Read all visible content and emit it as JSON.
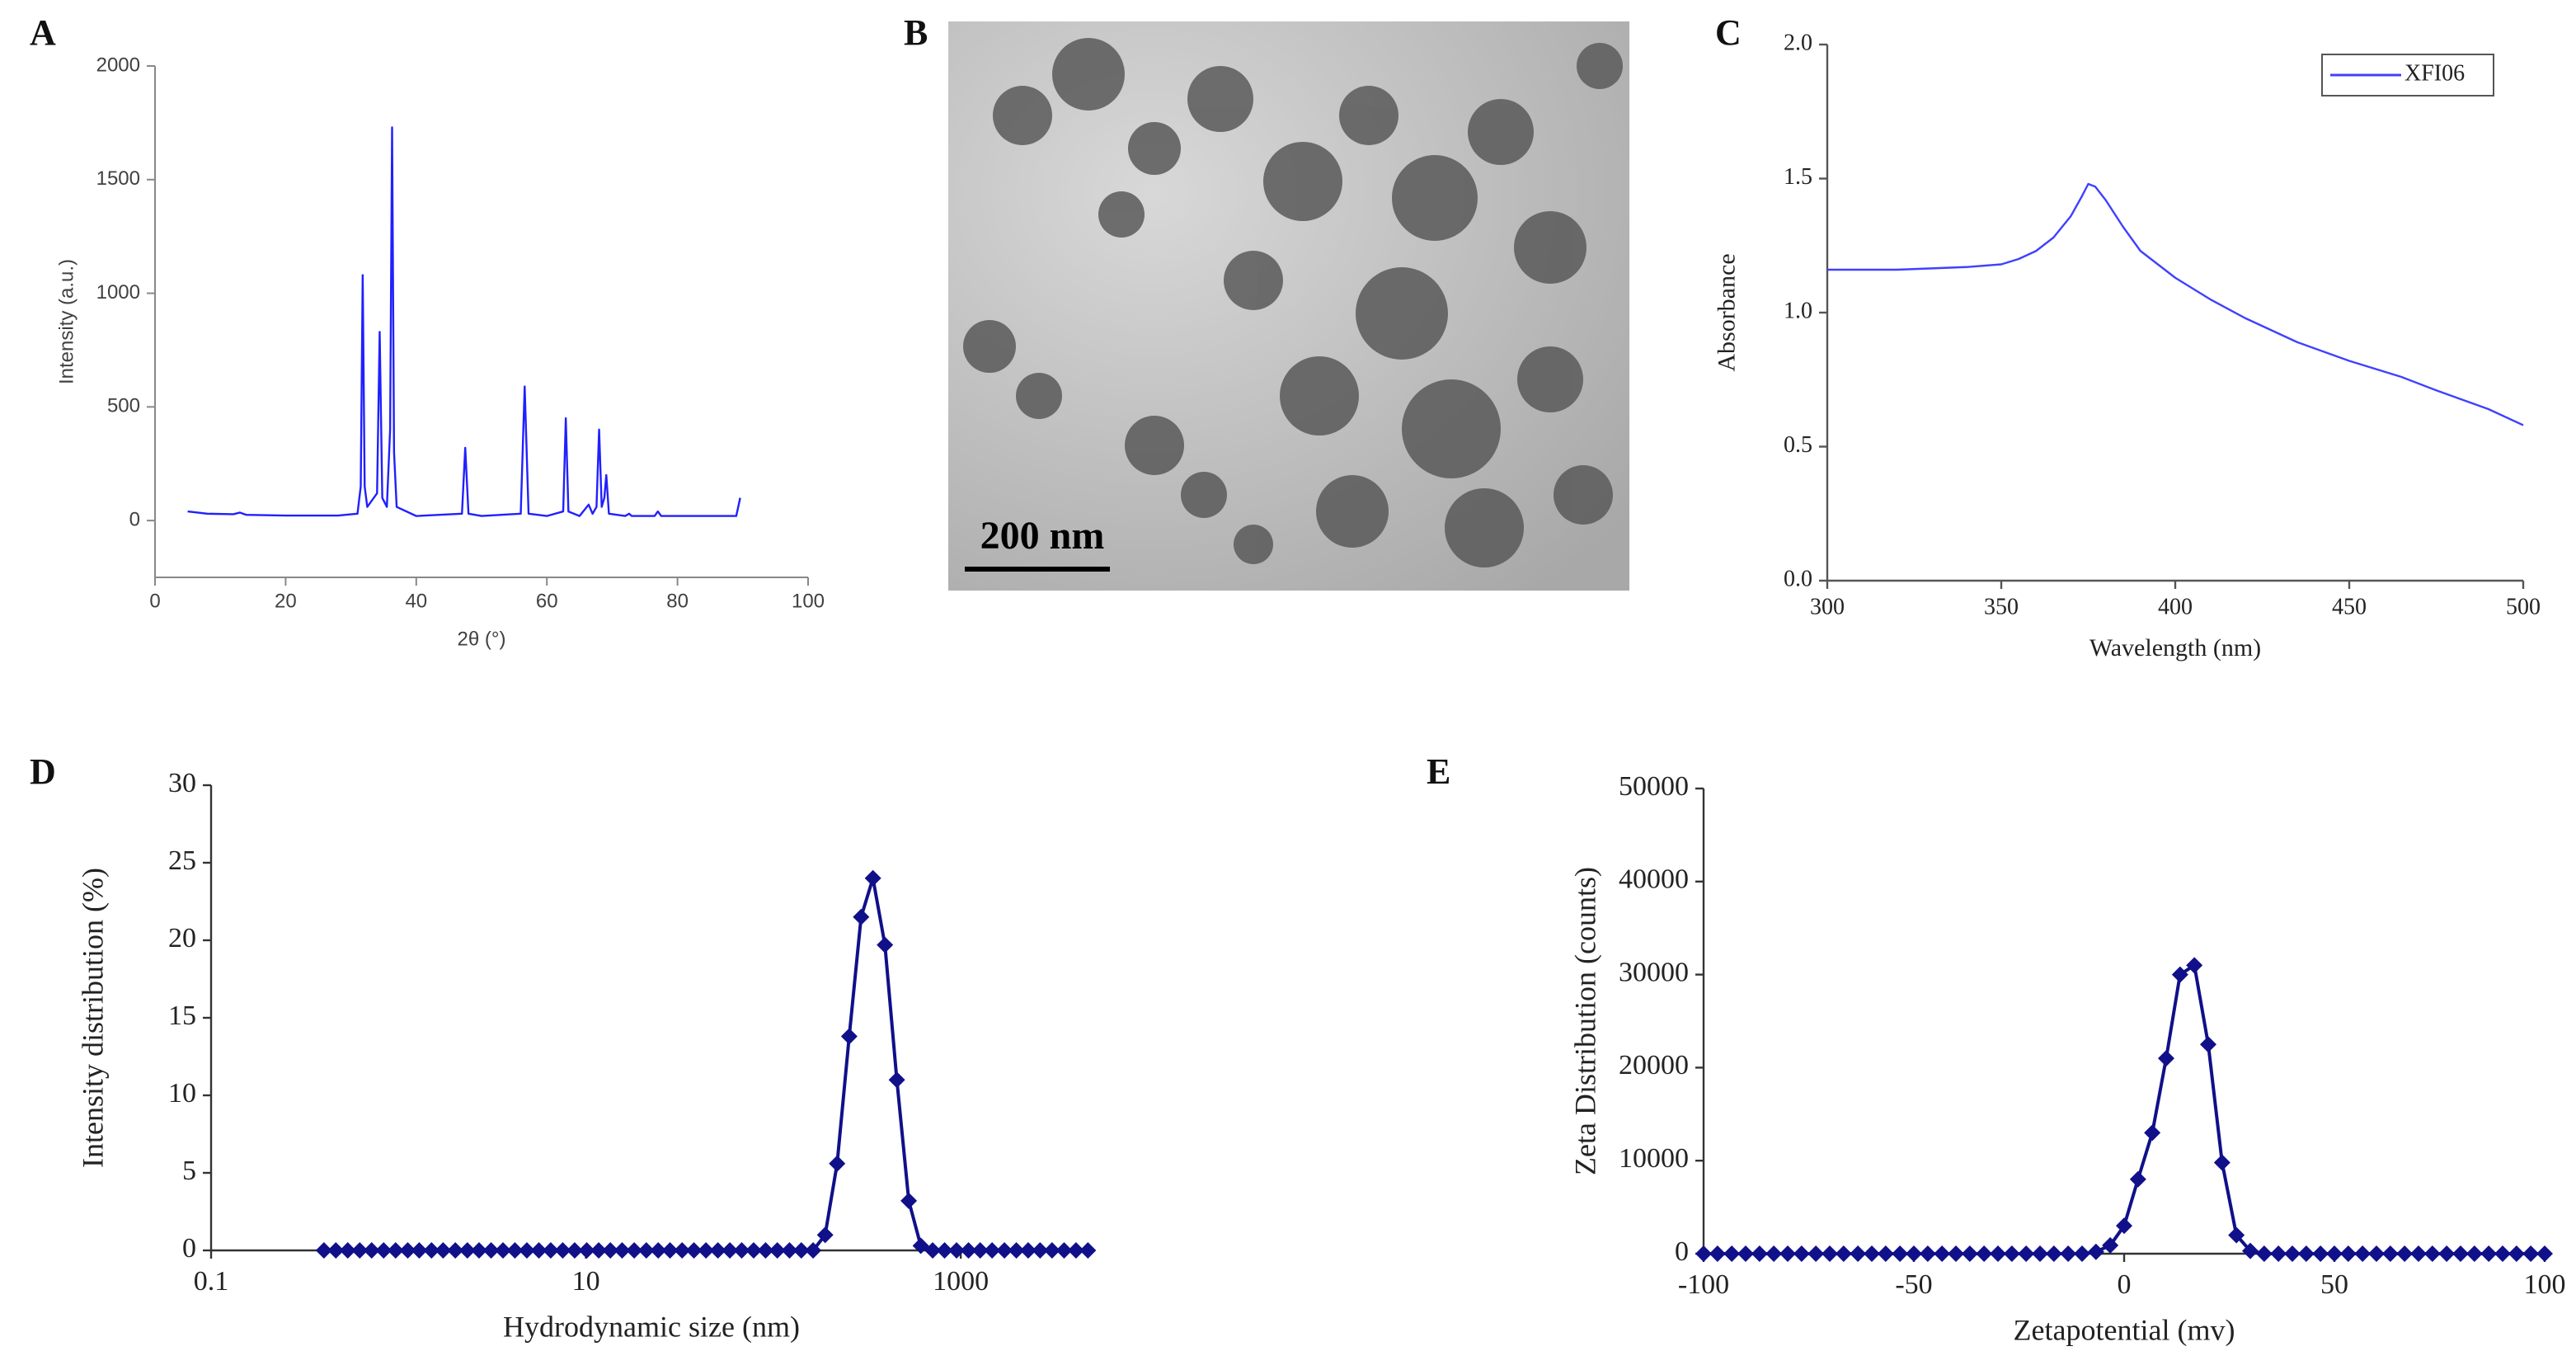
{
  "chart_data": [
    {
      "type": "line",
      "panel": "A",
      "x_label": "2θ (°)",
      "y_label": "Intensity (a.u.)",
      "x": [
        5,
        8,
        12,
        13,
        14,
        20,
        28,
        31,
        31.5,
        31.8,
        32.1,
        32.5,
        34,
        34.4,
        34.8,
        35.5,
        36,
        36.3,
        36.6,
        37,
        40,
        47,
        47.5,
        48,
        50,
        56,
        56.6,
        57.2,
        60,
        62.5,
        62.9,
        63.3,
        65,
        66.4,
        67,
        67.6,
        68,
        68.4,
        68.8,
        69.1,
        69.5,
        72,
        72.6,
        73,
        76.5,
        77,
        77.5,
        81,
        81.4,
        82,
        89,
        89.3,
        89.6
      ],
      "series": [
        {
          "color": "#2020ff",
          "values": [
            40,
            30,
            28,
            35,
            25,
            22,
            22,
            30,
            150,
            1080,
            150,
            60,
            120,
            830,
            100,
            60,
            400,
            1730,
            300,
            60,
            20,
            30,
            320,
            30,
            20,
            30,
            590,
            30,
            20,
            40,
            450,
            40,
            20,
            70,
            30,
            60,
            400,
            60,
            100,
            200,
            30,
            20,
            30,
            20,
            20,
            40,
            20,
            20,
            20,
            20,
            20,
            60,
            100
          ]
        }
      ],
      "xlim": [
        0,
        100
      ],
      "xticks": [
        0,
        20,
        40,
        60,
        80,
        100
      ],
      "ylim": [
        -250,
        2000
      ],
      "yticks": [
        0,
        500,
        1000,
        1500,
        2000
      ]
    },
    {
      "type": "line",
      "panel": "C",
      "x_label": "Wavelength (nm)",
      "y_label": "Absorbance",
      "x": [
        300,
        320,
        340,
        350,
        355,
        360,
        365,
        370,
        373,
        375,
        377,
        380,
        385,
        390,
        400,
        410,
        420,
        435,
        450,
        465,
        475,
        490,
        500
      ],
      "series": [
        {
          "name": "XFI06",
          "color": "#4040ff",
          "values": [
            1.16,
            1.16,
            1.17,
            1.18,
            1.2,
            1.23,
            1.28,
            1.36,
            1.43,
            1.48,
            1.47,
            1.42,
            1.32,
            1.23,
            1.13,
            1.05,
            0.98,
            0.89,
            0.82,
            0.76,
            0.71,
            0.64,
            0.58
          ]
        }
      ],
      "xlim": [
        300,
        500
      ],
      "xticks": [
        300,
        350,
        400,
        450,
        500
      ],
      "ylim": [
        0,
        2
      ],
      "yticks": [
        {
          "value": 0,
          "label": "0.0"
        },
        0.5,
        {
          "value": 1,
          "label": "1.0"
        },
        1.5,
        {
          "value": 2,
          "label": "2.0"
        }
      ],
      "legend": "top-right"
    },
    {
      "type": "line",
      "panel": "D",
      "markers": true,
      "xscale": "log",
      "x_label": "Hydrodynamic size (nm)",
      "y_label": "Intensity distribution (%)",
      "x": [
        0.4,
        0.463,
        0.536,
        0.621,
        0.719,
        0.833,
        0.965,
        1.12,
        1.29,
        1.5,
        1.73,
        2.01,
        2.33,
        2.69,
        3.12,
        3.61,
        4.18,
        4.84,
        5.61,
        6.49,
        7.52,
        8.71,
        10.1,
        11.7,
        13.5,
        15.6,
        18.1,
        21,
        24.3,
        28.1,
        32.6,
        37.7,
        43.7,
        50.6,
        58.6,
        67.8,
        78.5,
        90.9,
        105,
        122,
        141,
        163,
        189,
        219,
        254,
        294,
        340,
        394,
        456,
        528,
        612,
        708,
        820,
        950,
        1100,
        1270,
        1470,
        1710,
        1980,
        2290,
        2650,
        3070,
        3560,
        4120,
        4770
      ],
      "series": [
        {
          "color": "#10108a",
          "values": [
            0,
            0,
            0,
            0,
            0,
            0,
            0,
            0,
            0,
            0,
            0,
            0,
            0,
            0,
            0,
            0,
            0,
            0,
            0,
            0,
            0,
            0,
            0,
            0,
            0,
            0,
            0,
            0,
            0,
            0,
            0,
            0,
            0,
            0,
            0,
            0,
            0,
            0,
            0,
            0,
            0,
            0,
            1.0,
            5.6,
            13.8,
            21.5,
            24.0,
            19.7,
            11.0,
            3.2,
            0.3,
            0,
            0,
            0,
            0,
            0,
            0,
            0,
            0,
            0,
            0,
            0,
            0,
            0,
            0
          ]
        }
      ],
      "xlim": [
        0.1,
        5000
      ],
      "xticks": [
        0.1,
        10,
        1000
      ],
      "ylim": [
        0,
        30
      ],
      "yticks": [
        0,
        5,
        10,
        15,
        20,
        25,
        30
      ]
    },
    {
      "type": "line",
      "panel": "E",
      "markers": true,
      "x_label": "Zetapotential  (mv)",
      "y_label": "Zeta Distribution  (counts)",
      "x": [
        -100,
        -96.7,
        -93.3,
        -90,
        -86.7,
        -83.3,
        -80,
        -76.7,
        -73.3,
        -70,
        -66.7,
        -63.3,
        -60,
        -56.7,
        -53.3,
        -50,
        -46.7,
        -43.3,
        -40,
        -36.7,
        -33.3,
        -30,
        -26.7,
        -23.3,
        -20,
        -16.7,
        -13.3,
        -10,
        -6.7,
        -3.3,
        0,
        3.3,
        6.7,
        10,
        13.3,
        16.7,
        20,
        23.3,
        26.7,
        30,
        33.3,
        36.7,
        40,
        43.3,
        46.7,
        50,
        53.3,
        56.7,
        60,
        63.3,
        66.7,
        70,
        73.3,
        76.7,
        80,
        83.3,
        86.7,
        90,
        93.3,
        96.7,
        100
      ],
      "series": [
        {
          "color": "#10108a",
          "values": [
            0,
            0,
            0,
            0,
            0,
            0,
            0,
            0,
            0,
            0,
            0,
            0,
            0,
            0,
            0,
            0,
            0,
            0,
            0,
            0,
            0,
            0,
            0,
            0,
            0,
            0,
            0,
            0,
            200,
            900,
            3000,
            8000,
            13000,
            21000,
            30000,
            31000,
            22500,
            9800,
            2000,
            300,
            0,
            0,
            0,
            0,
            0,
            0,
            0,
            0,
            0,
            0,
            0,
            0,
            0,
            0,
            0,
            0,
            0,
            0,
            0,
            0,
            0
          ]
        }
      ],
      "xlim": [
        -100,
        100
      ],
      "xticks": [
        -100,
        -50,
        0,
        50,
        100
      ],
      "ylim": [
        0,
        50000
      ],
      "yticks": [
        0,
        10000,
        20000,
        30000,
        40000,
        50000
      ]
    }
  ],
  "image_panel": {
    "label": "B",
    "scale_bar": "200 nm"
  }
}
